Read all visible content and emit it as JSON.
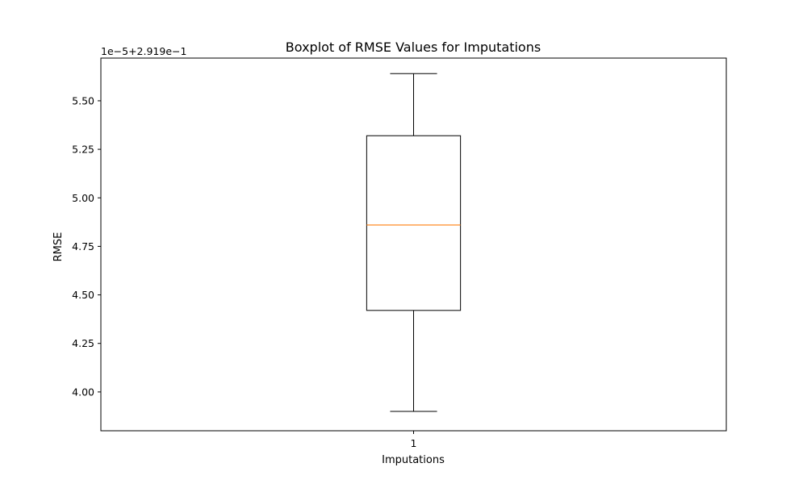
{
  "chart_data": {
    "type": "boxplot",
    "title": "Boxplot of RMSE Values for Imputations",
    "xlabel": "Imputations",
    "ylabel": "RMSE",
    "y_offset_label": "1e−5+2.919e−1",
    "categories": [
      "1"
    ],
    "boxes": [
      {
        "category": "1",
        "whisker_low": 3.9,
        "q1": 4.42,
        "median": 4.86,
        "q3": 5.32,
        "whisker_high": 5.64
      }
    ],
    "ylim": [
      3.8,
      5.72
    ],
    "yticks": [
      4.0,
      4.25,
      4.5,
      4.75,
      5.0,
      5.25,
      5.5
    ],
    "ytick_labels": [
      "4.00",
      "4.25",
      "4.50",
      "4.75",
      "5.00",
      "5.25",
      "5.50"
    ],
    "grid": false,
    "colors": {
      "box": "#000000",
      "median": "#ff7f0e",
      "whisker": "#000000"
    }
  }
}
